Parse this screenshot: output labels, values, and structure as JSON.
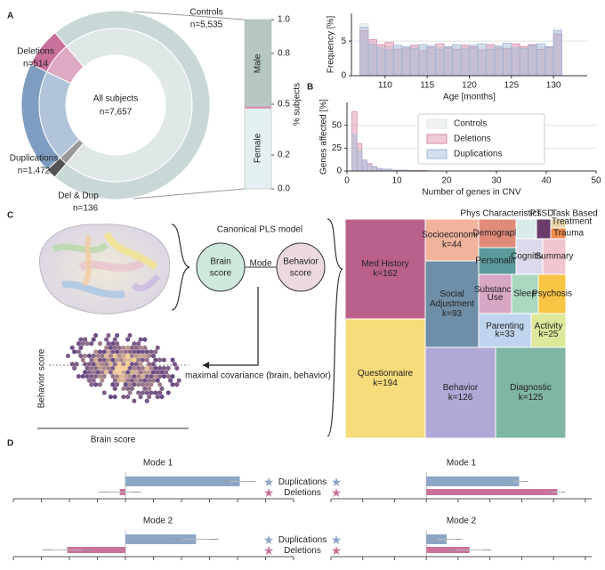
{
  "panel_labels": [
    "A",
    "B",
    "C",
    "D"
  ],
  "chart_data": [
    {
      "type": "donut",
      "categories": [
        "Controls",
        "Del & Dup",
        "Duplications",
        "Deletions"
      ],
      "values": [
        5535,
        136,
        1472,
        514
      ],
      "value_labels": [
        "n=5,535",
        "n=136",
        "n=1,472",
        "n=514"
      ],
      "colors": [
        "#c9d8d7",
        "#555555",
        "#7f9dc0",
        "#c8709a"
      ],
      "center_title": "All subjects",
      "center_label": "n=7,657"
    },
    {
      "type": "stacked",
      "categories": [
        "Female",
        "Male"
      ],
      "values": [
        0.48,
        0.52
      ],
      "colors": [
        "#e3eff0",
        "#b7c8c4"
      ],
      "ylabel": "% subjects",
      "ylim": [
        0,
        1
      ],
      "yticks": [
        {
          "value": 0,
          "label": "0.0"
        },
        0.2,
        0.5,
        0.8,
        {
          "value": 1,
          "label": "1.0"
        }
      ]
    },
    {
      "type": "histogram",
      "xlabel": "Age [months]",
      "ylabel": "Frequency [%]",
      "bins": [
        107,
        108,
        109,
        110,
        111,
        112,
        113,
        114,
        115,
        116,
        117,
        118,
        119,
        120,
        121,
        122,
        123,
        124,
        125,
        126,
        127,
        128,
        129,
        130,
        131
      ],
      "xlim": [
        106,
        134
      ],
      "xticks": [
        110,
        115,
        120,
        125,
        130
      ],
      "ylim": [
        0,
        9
      ],
      "yticks": [
        0,
        5
      ],
      "grid": true,
      "series": [
        {
          "name": "Controls",
          "color": "#dfe4e4",
          "values": [
            7.5,
            4.8,
            4.3,
            4.2,
            4.0,
            4.0,
            4.2,
            4.1,
            4.0,
            4.2,
            4.1,
            4.0,
            4.2,
            4.1,
            4.0,
            4.3,
            4.2,
            4.0,
            4.2,
            4.1,
            4.3,
            4.2,
            4.0,
            6.8
          ]
        },
        {
          "name": "Deletions",
          "color": "#d98aa6",
          "values": [
            6.5,
            5.2,
            4.5,
            4.8,
            3.8,
            4.0,
            4.4,
            3.6,
            4.1,
            4.6,
            4.0,
            3.8,
            4.4,
            4.2,
            3.7,
            4.5,
            4.0,
            3.9,
            4.6,
            4.2,
            4.5,
            3.8,
            4.1,
            6.0
          ]
        },
        {
          "name": "Duplications",
          "color": "#9fb7d6",
          "values": [
            7.0,
            4.5,
            4.0,
            3.7,
            4.4,
            4.2,
            3.9,
            4.5,
            4.3,
            3.8,
            4.2,
            4.5,
            3.9,
            4.4,
            4.6,
            3.8,
            4.3,
            4.7,
            4.0,
            3.9,
            4.4,
            4.6,
            4.2,
            6.5
          ]
        }
      ]
    },
    {
      "type": "histogram",
      "xlabel": "Number of genes in CNV",
      "ylabel": "Genes affected [%]",
      "bins": [
        0,
        1,
        2,
        3,
        4,
        5,
        6,
        7,
        8,
        9,
        10,
        11,
        12,
        13,
        14,
        15,
        16
      ],
      "xlim": [
        0,
        50
      ],
      "xticks": [
        0,
        10,
        20,
        30,
        40,
        50
      ],
      "ylim": [
        0,
        75
      ],
      "yticks": [
        0,
        25,
        50
      ],
      "grid": true,
      "legend": true,
      "series": [
        {
          "name": "Controls",
          "color": "#dfe4e4",
          "values": [
            0,
            0,
            0,
            0,
            0,
            0,
            0,
            0,
            0,
            0,
            0,
            0,
            0,
            0,
            0,
            0
          ]
        },
        {
          "name": "Deletions",
          "color": "#d98aa6",
          "values": [
            0,
            65,
            30,
            12,
            8,
            5,
            3,
            2,
            2,
            1,
            1,
            1,
            0.5,
            0.5,
            0.5,
            0.5
          ]
        },
        {
          "name": "Duplications",
          "color": "#9fb7d6",
          "values": [
            0,
            40,
            22,
            12,
            7,
            5,
            3,
            2,
            2,
            1,
            1,
            1,
            0.5,
            0.5,
            0,
            0
          ]
        }
      ]
    },
    {
      "type": "bar-h",
      "title": "Mode 1",
      "categories": [
        "Duplications",
        "Deletions"
      ],
      "values": [
        1.02,
        -0.05
      ],
      "errors": [
        0.14,
        0.19
      ],
      "colors": [
        "#8ea6c6",
        "#c9739b"
      ],
      "xlim": [
        -1,
        1.5
      ],
      "xticks": [
        -1,
        -0.75,
        -0.5,
        -0.25,
        0,
        0.25,
        0.5,
        0.75,
        1,
        1.25,
        1.5
      ]
    },
    {
      "type": "bar-h",
      "title": "Mode 1",
      "values": [
        0.73,
        1.03
      ],
      "errors": [
        0.07,
        0.06
      ],
      "colors": [
        "#8ea6c6",
        "#c9739b"
      ],
      "xlim": [
        -0.75,
        1.3
      ],
      "xticks": [
        -0.75,
        -0.5,
        -0.25,
        0,
        0.25,
        0.5,
        0.75,
        1,
        1.25
      ]
    },
    {
      "type": "bar-h",
      "title": "Mode 2",
      "categories": [
        "Duplications",
        "Deletions"
      ],
      "values": [
        0.63,
        -0.52
      ],
      "errors": [
        0.2,
        0.22
      ],
      "colors": [
        "#8ea6c6",
        "#c9739b"
      ],
      "xlim": [
        -1,
        1.5
      ],
      "xticks": [
        -1,
        -0.75,
        -0.5,
        -0.25,
        0,
        0.25,
        0.5,
        0.75,
        1,
        1.25,
        1.5
      ]
    },
    {
      "type": "bar-h",
      "title": "Mode 2",
      "values": [
        0.16,
        0.34
      ],
      "errors": [
        0.12,
        0.17
      ],
      "colors": [
        "#8ea6c6",
        "#c9739b"
      ],
      "xlim": [
        -0.75,
        1.3
      ],
      "xticks": [
        -0.75,
        -0.5,
        -0.25,
        0,
        0.25,
        0.5,
        0.75,
        1,
        1.25
      ]
    }
  ],
  "pls": {
    "title": "Canonical PLS model",
    "brain_score": [
      "Brain",
      "score"
    ],
    "mode": "Mode",
    "behavior_score": [
      "Behavior",
      "score"
    ],
    "caption": "maximal covariance (brain, behavior)",
    "scatter_x": "Brain score",
    "scatter_y": "Behavior score"
  },
  "treemap": {
    "cells": [
      {
        "label": [
          "Med History"
        ],
        "count": "k=162",
        "color": "#b9618a"
      },
      {
        "label": [
          "Questionnaire"
        ],
        "count": "k=194",
        "color": "#f6dc7a"
      },
      {
        "label": [
          "Socioeconomic"
        ],
        "count": "k=44",
        "color": "#f2b39c"
      },
      {
        "label": [
          "Social",
          "Adjustment"
        ],
        "count": "k=93",
        "color": "#6f8fa8"
      },
      {
        "label": [
          "Behavior"
        ],
        "count": "k=126",
        "color": "#b1a8d7"
      },
      {
        "label": [
          "Diagnostic"
        ],
        "count": "k=125",
        "color": "#7fb5a4"
      },
      {
        "label": [
          "Demograph."
        ],
        "color": "#e08a78"
      },
      {
        "label": [
          "Personality"
        ],
        "color": "#5b9a9a"
      },
      {
        "label": [
          "Phys Characteristics"
        ],
        "color": "#d8ecea"
      },
      {
        "label": [
          "PTSD"
        ],
        "color": "#6b3c6a"
      },
      {
        "label": [
          "Task Based",
          "Treatment"
        ],
        "color": "#e8d3a8"
      },
      {
        "label": [
          "Trauma"
        ],
        "color": "#f08a4b"
      },
      {
        "label": [
          "Cognitive"
        ],
        "color": "#ddd9ec"
      },
      {
        "label": [
          "Summary"
        ],
        "color": "#f3c6cf"
      },
      {
        "label": [
          "Substance",
          "Use"
        ],
        "color": "#d8a7c4"
      },
      {
        "label": [
          "Sleep"
        ],
        "color": "#a8d8c0"
      },
      {
        "label": [
          "Psychosis"
        ],
        "color": "#f7c443"
      },
      {
        "label": [
          "Parenting"
        ],
        "count": "k=33",
        "color": "#c0d4ee"
      },
      {
        "label": [
          "Activity"
        ],
        "count": "k=25",
        "color": "#dde89a"
      }
    ]
  }
}
